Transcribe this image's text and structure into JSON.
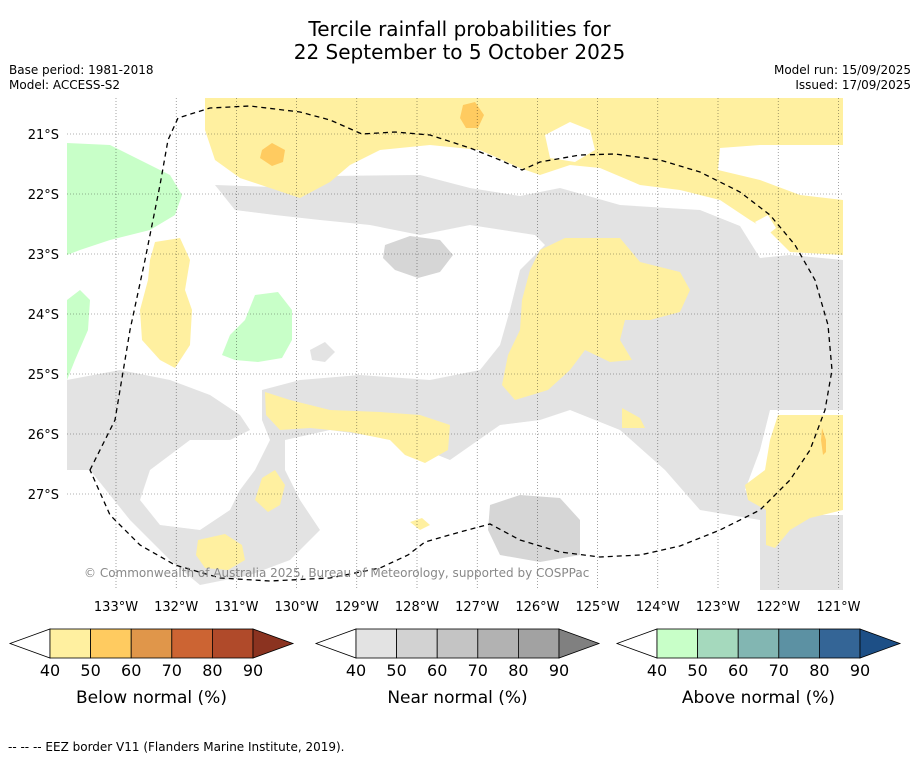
{
  "header": {
    "title_line1": "Tercile rainfall probabilities for",
    "title_line2": "22 September to 5 October 2025",
    "base_period": "Base period: 1981-2018",
    "model": "Model: ACCESS-S2",
    "model_run": "Model run: 15/09/2025",
    "issued": "Issued: 17/09/2025"
  },
  "map": {
    "lon_labels": [
      "133°W",
      "132°W",
      "131°W",
      "130°W",
      "129°W",
      "128°W",
      "127°W",
      "126°W",
      "125°W",
      "124°W",
      "123°W",
      "122°W",
      "121°W"
    ],
    "lat_labels": [
      "21°S",
      "22°S",
      "23°S",
      "24°S",
      "25°S",
      "26°S",
      "27°S"
    ],
    "copyright": "© Commonwealth of Australia 2025, Bureau of Meteorology, supported by COSPPac",
    "colors": {
      "below_40": "#fff0a0",
      "below_50": "#ffcb60",
      "near_40": "#e3e3e3",
      "near_50": "#d2d2d2",
      "above_40": "#c8ffc8",
      "ocean": "#ffffff",
      "eez": "#000000"
    }
  },
  "colorbars": [
    {
      "name": "below",
      "label": "Below normal (%)",
      "ticks": [
        "40",
        "50",
        "60",
        "70",
        "80",
        "90"
      ],
      "colors": [
        "#fff0a0",
        "#ffcb60",
        "#e0964a",
        "#cc6433",
        "#b04a2a",
        "#8b3320"
      ]
    },
    {
      "name": "near",
      "label": "Near normal (%)",
      "ticks": [
        "40",
        "50",
        "60",
        "70",
        "80",
        "90"
      ],
      "colors": [
        "#e3e3e3",
        "#d2d2d2",
        "#c4c4c4",
        "#b2b2b2",
        "#a2a2a2",
        "#808080"
      ]
    },
    {
      "name": "above",
      "label": "Above normal (%)",
      "ticks": [
        "40",
        "50",
        "60",
        "70",
        "80",
        "90"
      ],
      "colors": [
        "#c8ffc8",
        "#a5d9bd",
        "#82b6b2",
        "#5c91a3",
        "#346596",
        "#1d4f86"
      ]
    }
  ],
  "footnote": "--  --  -- EEZ border V11 (Flanders Marine Institute, 2019)."
}
